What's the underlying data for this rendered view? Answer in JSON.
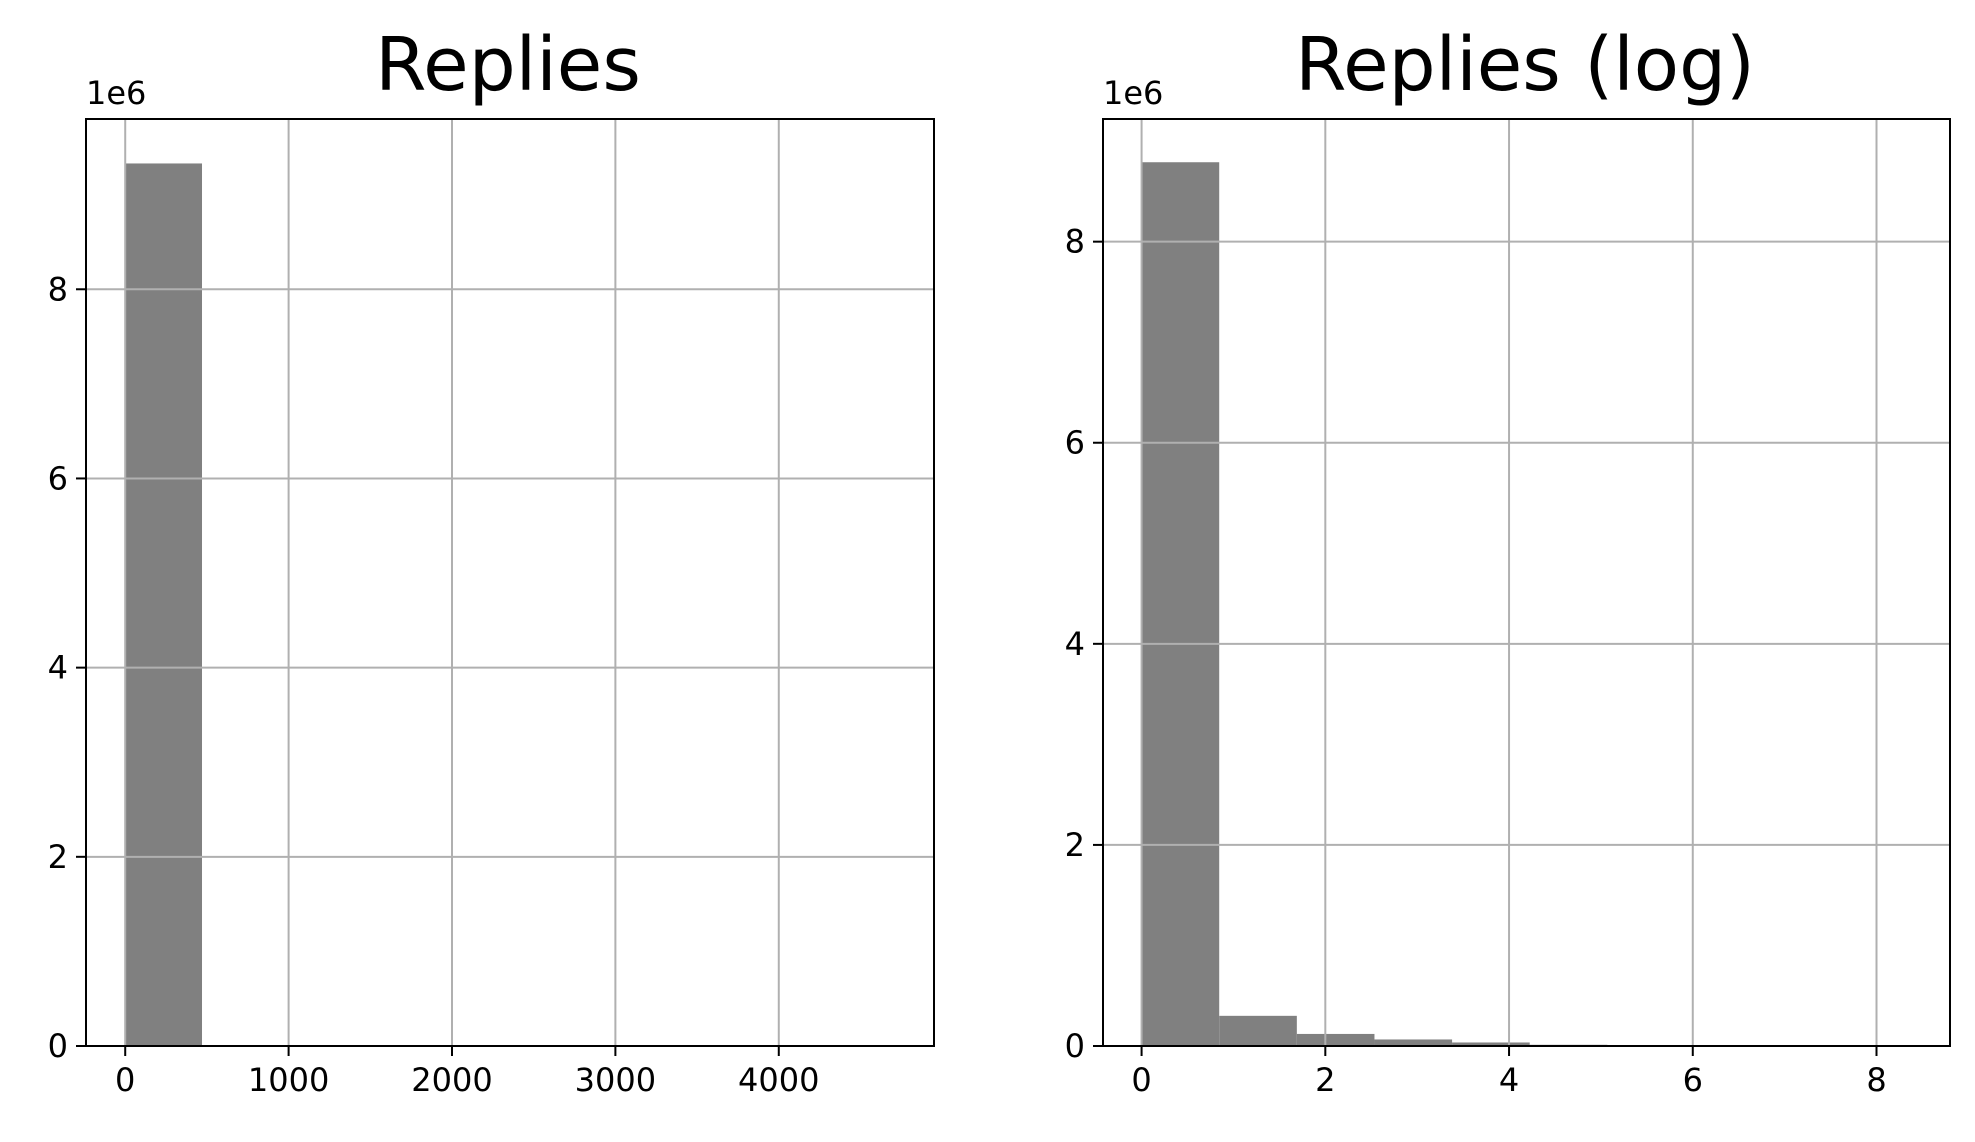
{
  "chart_data": [
    {
      "type": "bar",
      "title": "Replies",
      "xlabel": "",
      "ylabel": "",
      "y_multiplier_label": "1e6",
      "xlim": [
        -240,
        4950
      ],
      "ylim": [
        0,
        9.8
      ],
      "xticks": [
        0,
        1000,
        2000,
        3000,
        4000
      ],
      "xtick_labels": [
        "0",
        "1000",
        "2000",
        "3000",
        "4000"
      ],
      "yticks": [
        0,
        2,
        4,
        6,
        8
      ],
      "ytick_labels": [
        "0",
        "2",
        "4",
        "6",
        "8"
      ],
      "grid": true,
      "bar_color": "#808080",
      "bins": [
        {
          "x0": 0,
          "x1": 470,
          "value": 9.33
        },
        {
          "x0": 470,
          "x1": 940,
          "value": 0
        },
        {
          "x0": 940,
          "x1": 1410,
          "value": 0
        },
        {
          "x0": 1410,
          "x1": 1880,
          "value": 0
        },
        {
          "x0": 1880,
          "x1": 2350,
          "value": 0
        },
        {
          "x0": 2350,
          "x1": 2820,
          "value": 0
        },
        {
          "x0": 2820,
          "x1": 3290,
          "value": 0
        },
        {
          "x0": 3290,
          "x1": 3760,
          "value": 0
        },
        {
          "x0": 3760,
          "x1": 4230,
          "value": 0
        },
        {
          "x0": 4230,
          "x1": 4700,
          "value": 0
        }
      ]
    },
    {
      "type": "bar",
      "title": "Replies (log)",
      "xlabel": "",
      "ylabel": "",
      "y_multiplier_label": "1e6",
      "xlim": [
        -0.42,
        8.8
      ],
      "ylim": [
        0,
        9.22
      ],
      "xticks": [
        0,
        2,
        4,
        6,
        8
      ],
      "xtick_labels": [
        "0",
        "2",
        "4",
        "6",
        "8"
      ],
      "yticks": [
        0,
        2,
        4,
        6,
        8
      ],
      "ytick_labels": [
        "0",
        "2",
        "4",
        "6",
        "8"
      ],
      "grid": true,
      "bar_color": "#808080",
      "bins": [
        {
          "x0": 0.0,
          "x1": 0.845,
          "value": 8.79
        },
        {
          "x0": 0.845,
          "x1": 1.69,
          "value": 0.3
        },
        {
          "x0": 1.69,
          "x1": 2.535,
          "value": 0.12
        },
        {
          "x0": 2.535,
          "x1": 3.38,
          "value": 0.065
        },
        {
          "x0": 3.38,
          "x1": 4.225,
          "value": 0.035
        },
        {
          "x0": 4.225,
          "x1": 5.07,
          "value": 0.012
        },
        {
          "x0": 5.07,
          "x1": 5.915,
          "value": 0.004
        },
        {
          "x0": 5.915,
          "x1": 6.76,
          "value": 0.0015
        },
        {
          "x0": 6.76,
          "x1": 7.605,
          "value": 0.0005
        },
        {
          "x0": 7.605,
          "x1": 8.45,
          "value": 0.0002
        }
      ]
    }
  ]
}
